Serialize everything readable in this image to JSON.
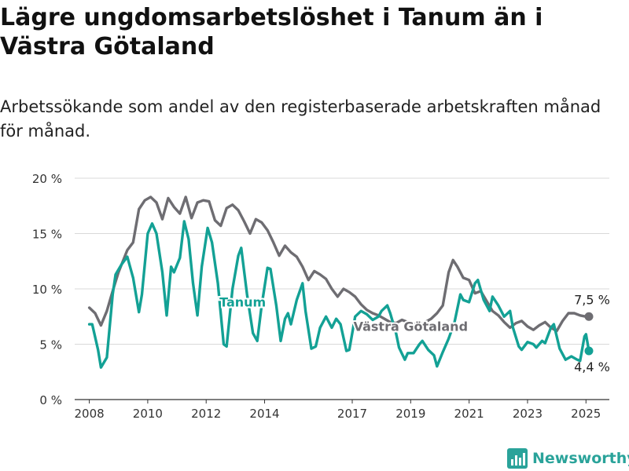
{
  "title": "Lägre ungdomsarbetslöshet i Tanum än i Västra Götaland",
  "subtitle": "Arbetssökande som andel av den registerbaserade arbetskraften månad för månad.",
  "brand": {
    "name": "Newsworthy",
    "color": "#2aa39a"
  },
  "chart_data": {
    "type": "line",
    "ylim": [
      0,
      20
    ],
    "xlim": [
      2007.5,
      2025.8
    ],
    "y_ticks": [
      {
        "value": 0,
        "label": "0 %"
      },
      {
        "value": 5,
        "label": "5 %"
      },
      {
        "value": 10,
        "label": "10 %"
      },
      {
        "value": 15,
        "label": "15 %"
      },
      {
        "value": 20,
        "label": "20 %"
      }
    ],
    "x_ticks": [
      {
        "value": 2008,
        "label": "2008"
      },
      {
        "value": 2010,
        "label": "2010"
      },
      {
        "value": 2012,
        "label": "2012"
      },
      {
        "value": 2014,
        "label": "2014"
      },
      {
        "value": 2017,
        "label": "2017"
      },
      {
        "value": 2019,
        "label": "2019"
      },
      {
        "value": 2021,
        "label": "2021"
      },
      {
        "value": 2023,
        "label": "2023"
      },
      {
        "value": 2025,
        "label": "2025"
      }
    ],
    "grid": "horizontal",
    "series": [
      {
        "name": "Västra Götaland",
        "color": "#6e6d72",
        "end_label": "7,5 %",
        "points": [
          [
            2008.0,
            8.3
          ],
          [
            2008.2,
            7.8
          ],
          [
            2008.4,
            6.7
          ],
          [
            2008.6,
            8.0
          ],
          [
            2008.8,
            9.8
          ],
          [
            2009.0,
            11.5
          ],
          [
            2009.3,
            13.5
          ],
          [
            2009.5,
            14.2
          ],
          [
            2009.7,
            17.2
          ],
          [
            2009.9,
            18.0
          ],
          [
            2010.1,
            18.3
          ],
          [
            2010.3,
            17.8
          ],
          [
            2010.5,
            16.3
          ],
          [
            2010.7,
            18.2
          ],
          [
            2010.9,
            17.4
          ],
          [
            2011.1,
            16.8
          ],
          [
            2011.3,
            18.3
          ],
          [
            2011.5,
            16.4
          ],
          [
            2011.7,
            17.8
          ],
          [
            2011.9,
            18.0
          ],
          [
            2012.1,
            17.9
          ],
          [
            2012.3,
            16.2
          ],
          [
            2012.5,
            15.7
          ],
          [
            2012.7,
            17.3
          ],
          [
            2012.9,
            17.6
          ],
          [
            2013.1,
            17.1
          ],
          [
            2013.3,
            16.1
          ],
          [
            2013.5,
            15.0
          ],
          [
            2013.7,
            16.3
          ],
          [
            2013.9,
            16.0
          ],
          [
            2014.1,
            15.3
          ],
          [
            2014.3,
            14.2
          ],
          [
            2014.5,
            13.0
          ],
          [
            2014.7,
            13.9
          ],
          [
            2014.9,
            13.3
          ],
          [
            2015.1,
            12.9
          ],
          [
            2015.3,
            12.0
          ],
          [
            2015.5,
            10.8
          ],
          [
            2015.7,
            11.6
          ],
          [
            2015.9,
            11.3
          ],
          [
            2016.1,
            10.9
          ],
          [
            2016.3,
            10.0
          ],
          [
            2016.5,
            9.3
          ],
          [
            2016.7,
            10.0
          ],
          [
            2016.9,
            9.7
          ],
          [
            2017.1,
            9.3
          ],
          [
            2017.3,
            8.6
          ],
          [
            2017.5,
            8.1
          ],
          [
            2017.7,
            7.8
          ],
          [
            2017.9,
            7.6
          ],
          [
            2018.1,
            7.3
          ],
          [
            2018.3,
            7.0
          ],
          [
            2018.5,
            6.9
          ],
          [
            2018.7,
            7.2
          ],
          [
            2018.9,
            7.0
          ],
          [
            2019.1,
            6.8
          ],
          [
            2019.3,
            6.8
          ],
          [
            2019.5,
            7.0
          ],
          [
            2019.7,
            7.3
          ],
          [
            2019.9,
            7.8
          ],
          [
            2020.1,
            8.5
          ],
          [
            2020.3,
            11.5
          ],
          [
            2020.45,
            12.6
          ],
          [
            2020.6,
            12.0
          ],
          [
            2020.8,
            11.0
          ],
          [
            2021.0,
            10.8
          ],
          [
            2021.2,
            9.6
          ],
          [
            2021.4,
            9.8
          ],
          [
            2021.6,
            8.9
          ],
          [
            2021.8,
            8.0
          ],
          [
            2022.0,
            7.6
          ],
          [
            2022.2,
            7.0
          ],
          [
            2022.4,
            6.5
          ],
          [
            2022.6,
            6.9
          ],
          [
            2022.8,
            7.1
          ],
          [
            2023.0,
            6.6
          ],
          [
            2023.2,
            6.3
          ],
          [
            2023.4,
            6.7
          ],
          [
            2023.6,
            7.0
          ],
          [
            2023.8,
            6.5
          ],
          [
            2024.0,
            6.2
          ],
          [
            2024.2,
            7.1
          ],
          [
            2024.4,
            7.8
          ],
          [
            2024.6,
            7.8
          ],
          [
            2024.8,
            7.6
          ],
          [
            2025.0,
            7.5
          ],
          [
            2025.1,
            7.5
          ]
        ]
      },
      {
        "name": "Tanum",
        "color": "#13a195",
        "end_label": "4,4 %",
        "points": [
          [
            2008.0,
            6.8
          ],
          [
            2008.1,
            6.8
          ],
          [
            2008.3,
            4.5
          ],
          [
            2008.4,
            2.9
          ],
          [
            2008.6,
            3.8
          ],
          [
            2008.8,
            9.5
          ],
          [
            2008.9,
            11.3
          ],
          [
            2009.1,
            12.2
          ],
          [
            2009.3,
            12.9
          ],
          [
            2009.5,
            11.0
          ],
          [
            2009.7,
            7.9
          ],
          [
            2009.8,
            9.5
          ],
          [
            2010.0,
            15.0
          ],
          [
            2010.15,
            15.9
          ],
          [
            2010.3,
            15.0
          ],
          [
            2010.5,
            11.5
          ],
          [
            2010.65,
            7.6
          ],
          [
            2010.8,
            12.0
          ],
          [
            2010.9,
            11.5
          ],
          [
            2011.1,
            12.8
          ],
          [
            2011.25,
            16.1
          ],
          [
            2011.4,
            14.5
          ],
          [
            2011.55,
            10.5
          ],
          [
            2011.7,
            7.6
          ],
          [
            2011.85,
            12.0
          ],
          [
            2012.05,
            15.5
          ],
          [
            2012.2,
            14.2
          ],
          [
            2012.4,
            10.5
          ],
          [
            2012.6,
            5.0
          ],
          [
            2012.7,
            4.8
          ],
          [
            2012.9,
            10.0
          ],
          [
            2013.1,
            13.0
          ],
          [
            2013.2,
            13.7
          ],
          [
            2013.4,
            9.5
          ],
          [
            2013.6,
            6.0
          ],
          [
            2013.75,
            5.3
          ],
          [
            2013.9,
            8.5
          ],
          [
            2014.1,
            11.9
          ],
          [
            2014.2,
            11.8
          ],
          [
            2014.4,
            8.5
          ],
          [
            2014.55,
            5.3
          ],
          [
            2014.7,
            7.3
          ],
          [
            2014.8,
            7.8
          ],
          [
            2014.9,
            6.8
          ],
          [
            2015.1,
            9.0
          ],
          [
            2015.3,
            10.5
          ],
          [
            2015.4,
            8.0
          ],
          [
            2015.6,
            4.6
          ],
          [
            2015.75,
            4.8
          ],
          [
            2015.9,
            6.5
          ],
          [
            2016.1,
            7.5
          ],
          [
            2016.3,
            6.5
          ],
          [
            2016.45,
            7.3
          ],
          [
            2016.6,
            6.8
          ],
          [
            2016.8,
            4.4
          ],
          [
            2016.9,
            4.5
          ],
          [
            2017.1,
            7.5
          ],
          [
            2017.3,
            8.0
          ],
          [
            2017.5,
            7.7
          ],
          [
            2017.7,
            7.2
          ],
          [
            2017.9,
            7.5
          ],
          [
            2018.0,
            8.0
          ],
          [
            2018.2,
            8.5
          ],
          [
            2018.3,
            7.8
          ],
          [
            2018.5,
            6.0
          ],
          [
            2018.6,
            4.7
          ],
          [
            2018.8,
            3.6
          ],
          [
            2018.9,
            4.2
          ],
          [
            2019.1,
            4.2
          ],
          [
            2019.3,
            5.0
          ],
          [
            2019.4,
            5.3
          ],
          [
            2019.6,
            4.5
          ],
          [
            2019.8,
            4.0
          ],
          [
            2019.9,
            3.0
          ],
          [
            2020.1,
            4.3
          ],
          [
            2020.3,
            5.5
          ],
          [
            2020.5,
            7.0
          ],
          [
            2020.7,
            9.5
          ],
          [
            2020.8,
            9.0
          ],
          [
            2021.0,
            8.8
          ],
          [
            2021.2,
            10.5
          ],
          [
            2021.3,
            10.8
          ],
          [
            2021.5,
            9.0
          ],
          [
            2021.7,
            8.0
          ],
          [
            2021.8,
            9.3
          ],
          [
            2022.0,
            8.5
          ],
          [
            2022.2,
            7.5
          ],
          [
            2022.4,
            8.0
          ],
          [
            2022.5,
            6.5
          ],
          [
            2022.7,
            4.8
          ],
          [
            2022.8,
            4.5
          ],
          [
            2023.0,
            5.2
          ],
          [
            2023.2,
            5.0
          ],
          [
            2023.3,
            4.7
          ],
          [
            2023.5,
            5.3
          ],
          [
            2023.6,
            5.1
          ],
          [
            2023.8,
            6.5
          ],
          [
            2023.9,
            6.8
          ],
          [
            2024.1,
            4.6
          ],
          [
            2024.3,
            3.6
          ],
          [
            2024.5,
            3.9
          ],
          [
            2024.7,
            3.6
          ],
          [
            2024.8,
            3.5
          ],
          [
            2024.95,
            5.7
          ],
          [
            2025.0,
            5.9
          ],
          [
            2025.1,
            4.4
          ]
        ]
      }
    ]
  }
}
